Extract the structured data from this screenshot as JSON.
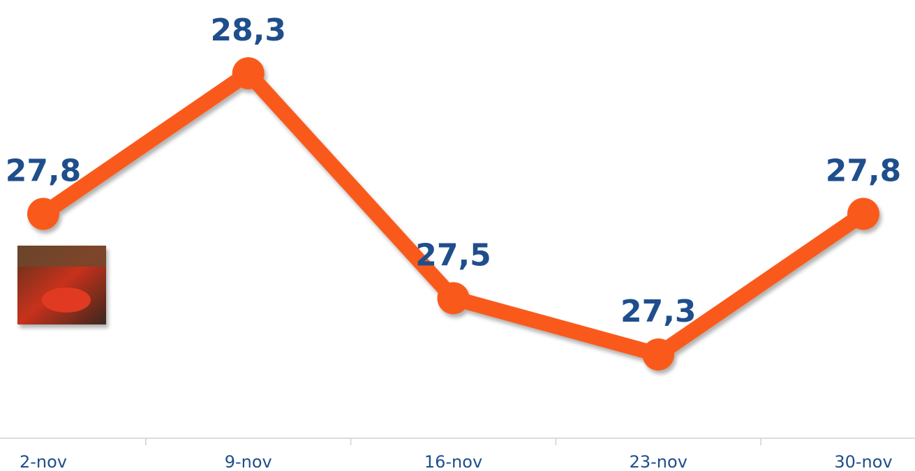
{
  "chart_data": {
    "type": "line",
    "categories": [
      "2-nov",
      "9-nov",
      "16-nov",
      "23-nov",
      "30-nov"
    ],
    "series": [
      {
        "color": "#f95a1a",
        "values": [
          27.8,
          28.3,
          27.5,
          27.3,
          27.8
        ],
        "value_labels": [
          "27,8",
          "28,3",
          "27,5",
          "27,3",
          "27,8"
        ]
      }
    ]
  }
}
